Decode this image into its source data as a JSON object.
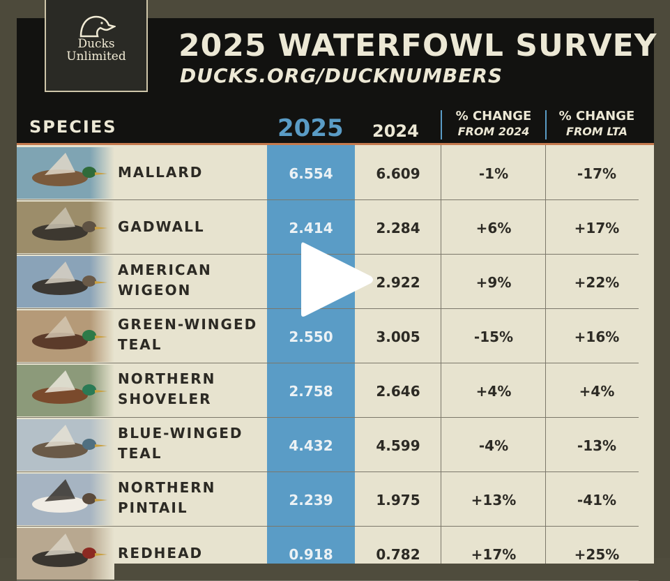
{
  "logo": {
    "line1": "Ducks",
    "line2": "Unlimited"
  },
  "header": {
    "title": "2025 WATERFOWL SURVEY",
    "url": "DUCKS.ORG/DUCKNUMBERS"
  },
  "columns": {
    "species": "SPECIES",
    "y2025": "2025",
    "y2024": "2024",
    "chg2024_top": "% CHANGE",
    "chg2024_sub": "FROM 2024",
    "chglta_top": "% CHANGE",
    "chglta_sub": "FROM LTA"
  },
  "rows": [
    {
      "line1": "MALLARD",
      "line2": "",
      "v2025": "6.554",
      "v2024": "6.609",
      "chg2024": "-1%",
      "chglta": "-17%",
      "photo": "mallard-photo"
    },
    {
      "line1": "GADWALL",
      "line2": "",
      "v2025": "2.414",
      "v2024": "2.284",
      "chg2024": "+6%",
      "chglta": "+17%",
      "photo": "gadwall-photo"
    },
    {
      "line1": "AMERICAN",
      "line2": "WIGEON",
      "v2025": "3",
      "v2024": "2.922",
      "chg2024": "+9%",
      "chglta": "+22%",
      "photo": "american-wigeon-photo"
    },
    {
      "line1": "GREEN-WINGED",
      "line2": "TEAL",
      "v2025": "2.550",
      "v2024": "3.005",
      "chg2024": "-15%",
      "chglta": "+16%",
      "photo": "green-winged-teal-photo"
    },
    {
      "line1": "NORTHERN",
      "line2": "SHOVELER",
      "v2025": "2.758",
      "v2024": "2.646",
      "chg2024": "+4%",
      "chglta": "+4%",
      "photo": "northern-shoveler-photo"
    },
    {
      "line1": "BLUE-WINGED",
      "line2": "TEAL",
      "v2025": "4.432",
      "v2024": "4.599",
      "chg2024": "-4%",
      "chglta": "-13%",
      "photo": "blue-winged-teal-photo"
    },
    {
      "line1": "NORTHERN",
      "line2": "PINTAIL",
      "v2025": "2.239",
      "v2024": "1.975",
      "chg2024": "+13%",
      "chglta": "-41%",
      "photo": "northern-pintail-photo"
    },
    {
      "line1": "REDHEAD",
      "line2": "",
      "v2025": "0.918",
      "v2024": "0.782",
      "chg2024": "+17%",
      "chglta": "+25%",
      "photo": "redhead-photo"
    }
  ],
  "colors": {
    "accent_blue": "#5a9cc6",
    "header_bg": "#121210",
    "table_bg": "#e7e3cf",
    "accent_orange": "#c57a4e"
  },
  "overlay": {
    "icon": "play-icon"
  }
}
